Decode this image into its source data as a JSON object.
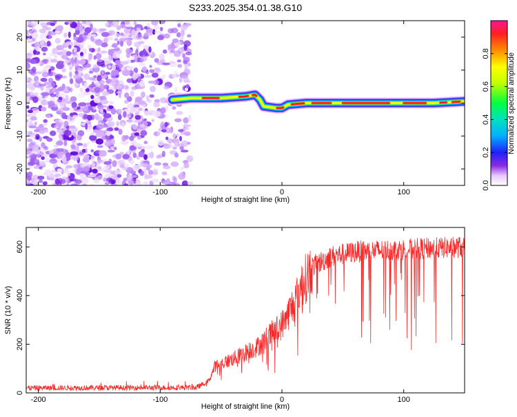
{
  "title": "S233.2025.354.01.38.G10",
  "chart_data": [
    {
      "type": "heatmap",
      "xlabel": "Height of straight line (km)",
      "ylabel": "Frequency (Hz)",
      "xlim": [
        -210,
        150
      ],
      "ylim": [
        -25,
        25
      ],
      "xticks": [
        -200,
        -100,
        0,
        100
      ],
      "yticks": [
        -20,
        -10,
        0,
        10,
        20
      ],
      "xtick_labels": [
        "-200",
        "-100",
        "0",
        "100"
      ],
      "ytick_labels": [
        "-20",
        "-10",
        "0",
        "10",
        "20"
      ],
      "noise_region_x": [
        -210,
        -75
      ],
      "ridge": [
        {
          "x": -90,
          "y": 1.0
        },
        {
          "x": -75,
          "y": 1.5
        },
        {
          "x": -50,
          "y": 1.5
        },
        {
          "x": -30,
          "y": 2.0
        },
        {
          "x": -22,
          "y": 2.5
        },
        {
          "x": -18,
          "y": 1.0
        },
        {
          "x": -15,
          "y": -1.0
        },
        {
          "x": -5,
          "y": -1.5
        },
        {
          "x": 0,
          "y": -1.5
        },
        {
          "x": 5,
          "y": -0.5
        },
        {
          "x": 20,
          "y": 0.0
        },
        {
          "x": 60,
          "y": 0.0
        },
        {
          "x": 100,
          "y": 0.0
        },
        {
          "x": 125,
          "y": 0.0
        },
        {
          "x": 150,
          "y": 0.5
        }
      ],
      "colorbar": {
        "label": "Normalized spectral amplitude",
        "range": [
          0,
          1
        ],
        "ticks": [
          0.0,
          0.2,
          0.4,
          0.6,
          0.8
        ],
        "tick_labels": [
          "0.0",
          "0.2",
          "0.4",
          "0.6",
          "0.8"
        ]
      }
    },
    {
      "type": "line",
      "xlabel": "Height of straight line (km)",
      "ylabel": "SNR (10 * v/v)",
      "xlim": [
        -210,
        150
      ],
      "ylim": [
        0,
        680
      ],
      "xticks": [
        -200,
        -100,
        0,
        100
      ],
      "yticks": [
        0,
        200,
        400,
        600
      ],
      "xtick_labels": [
        "-200",
        "-100",
        "0",
        "100"
      ],
      "ytick_labels": [
        "0",
        "200",
        "400",
        "600"
      ],
      "color": "#ff0000",
      "envelope": [
        {
          "x": -210,
          "y": 20
        },
        {
          "x": -70,
          "y": 22
        },
        {
          "x": -60,
          "y": 50
        },
        {
          "x": -55,
          "y": 110
        },
        {
          "x": -40,
          "y": 140
        },
        {
          "x": -20,
          "y": 190
        },
        {
          "x": 0,
          "y": 280
        },
        {
          "x": 10,
          "y": 370
        },
        {
          "x": 15,
          "y": 430
        },
        {
          "x": 25,
          "y": 520
        },
        {
          "x": 40,
          "y": 560
        },
        {
          "x": 60,
          "y": 580
        },
        {
          "x": 100,
          "y": 590
        },
        {
          "x": 150,
          "y": 600
        }
      ]
    }
  ]
}
